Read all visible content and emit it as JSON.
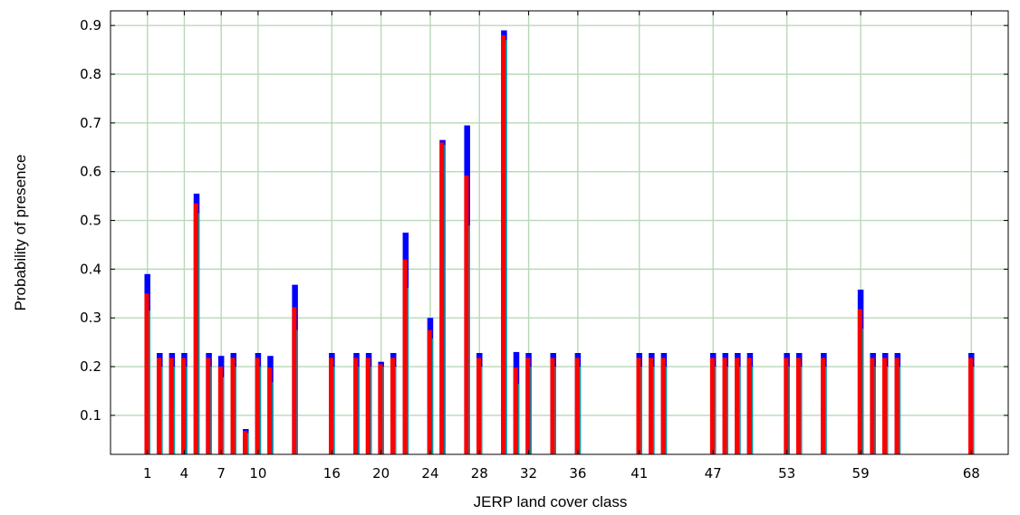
{
  "chart_data": {
    "type": "bar",
    "xlabel": "JERP land cover class",
    "ylabel": "Probability of presence",
    "xlim": [
      -2,
      71
    ],
    "ylim": [
      0.02,
      0.93
    ],
    "xticks": [
      1,
      4,
      7,
      10,
      16,
      20,
      24,
      28,
      32,
      36,
      41,
      47,
      53,
      59,
      68
    ],
    "yticks": [
      0.1,
      0.2,
      0.3,
      0.4,
      0.5,
      0.6,
      0.7,
      0.8,
      0.9
    ],
    "grid": true,
    "colors": {
      "upper": "#0000ff",
      "middle": "#ff0000",
      "lower": "#00a0a0",
      "grid": "#b8d8b8"
    },
    "bars": [
      {
        "x": 1,
        "upper": 0.39,
        "middle": 0.35,
        "lower": 0.315
      },
      {
        "x": 2,
        "upper": 0.228,
        "middle": 0.218,
        "lower": 0.2
      },
      {
        "x": 3,
        "upper": 0.228,
        "middle": 0.218,
        "lower": 0.2
      },
      {
        "x": 4,
        "upper": 0.228,
        "middle": 0.218,
        "lower": 0.2
      },
      {
        "x": 5,
        "upper": 0.555,
        "middle": 0.535,
        "lower": 0.515
      },
      {
        "x": 6,
        "upper": 0.228,
        "middle": 0.218,
        "lower": 0.2
      },
      {
        "x": 7,
        "upper": 0.222,
        "middle": 0.2,
        "lower": 0.178
      },
      {
        "x": 8,
        "upper": 0.228,
        "middle": 0.218,
        "lower": 0.2
      },
      {
        "x": 9,
        "upper": 0.072,
        "middle": 0.068,
        "lower": 0.064
      },
      {
        "x": 10,
        "upper": 0.228,
        "middle": 0.218,
        "lower": 0.2
      },
      {
        "x": 11,
        "upper": 0.222,
        "middle": 0.198,
        "lower": 0.168
      },
      {
        "x": 13,
        "upper": 0.368,
        "middle": 0.322,
        "lower": 0.275
      },
      {
        "x": 16,
        "upper": 0.228,
        "middle": 0.218,
        "lower": 0.2
      },
      {
        "x": 18,
        "upper": 0.228,
        "middle": 0.218,
        "lower": 0.2
      },
      {
        "x": 19,
        "upper": 0.228,
        "middle": 0.218,
        "lower": 0.2
      },
      {
        "x": 20,
        "upper": 0.21,
        "middle": 0.205,
        "lower": 0.2
      },
      {
        "x": 21,
        "upper": 0.228,
        "middle": 0.218,
        "lower": 0.2
      },
      {
        "x": 22,
        "upper": 0.475,
        "middle": 0.42,
        "lower": 0.362
      },
      {
        "x": 24,
        "upper": 0.3,
        "middle": 0.275,
        "lower": 0.258
      },
      {
        "x": 25,
        "upper": 0.665,
        "middle": 0.66,
        "lower": 0.655
      },
      {
        "x": 27,
        "upper": 0.695,
        "middle": 0.592,
        "lower": 0.49
      },
      {
        "x": 28,
        "upper": 0.228,
        "middle": 0.218,
        "lower": 0.2
      },
      {
        "x": 30,
        "upper": 0.89,
        "middle": 0.88,
        "lower": 0.87
      },
      {
        "x": 31,
        "upper": 0.23,
        "middle": 0.198,
        "lower": 0.165
      },
      {
        "x": 32,
        "upper": 0.228,
        "middle": 0.218,
        "lower": 0.2
      },
      {
        "x": 34,
        "upper": 0.228,
        "middle": 0.218,
        "lower": 0.2
      },
      {
        "x": 36,
        "upper": 0.228,
        "middle": 0.218,
        "lower": 0.2
      },
      {
        "x": 41,
        "upper": 0.228,
        "middle": 0.218,
        "lower": 0.2
      },
      {
        "x": 42,
        "upper": 0.228,
        "middle": 0.218,
        "lower": 0.2
      },
      {
        "x": 43,
        "upper": 0.228,
        "middle": 0.218,
        "lower": 0.2
      },
      {
        "x": 47,
        "upper": 0.228,
        "middle": 0.218,
        "lower": 0.2
      },
      {
        "x": 48,
        "upper": 0.228,
        "middle": 0.218,
        "lower": 0.2
      },
      {
        "x": 49,
        "upper": 0.228,
        "middle": 0.218,
        "lower": 0.2
      },
      {
        "x": 50,
        "upper": 0.228,
        "middle": 0.218,
        "lower": 0.2
      },
      {
        "x": 53,
        "upper": 0.228,
        "middle": 0.218,
        "lower": 0.2
      },
      {
        "x": 54,
        "upper": 0.228,
        "middle": 0.218,
        "lower": 0.2
      },
      {
        "x": 56,
        "upper": 0.228,
        "middle": 0.218,
        "lower": 0.2
      },
      {
        "x": 59,
        "upper": 0.358,
        "middle": 0.318,
        "lower": 0.278
      },
      {
        "x": 60,
        "upper": 0.228,
        "middle": 0.218,
        "lower": 0.2
      },
      {
        "x": 61,
        "upper": 0.228,
        "middle": 0.218,
        "lower": 0.2
      },
      {
        "x": 62,
        "upper": 0.228,
        "middle": 0.218,
        "lower": 0.2
      },
      {
        "x": 68,
        "upper": 0.228,
        "middle": 0.218,
        "lower": 0.2
      }
    ]
  }
}
